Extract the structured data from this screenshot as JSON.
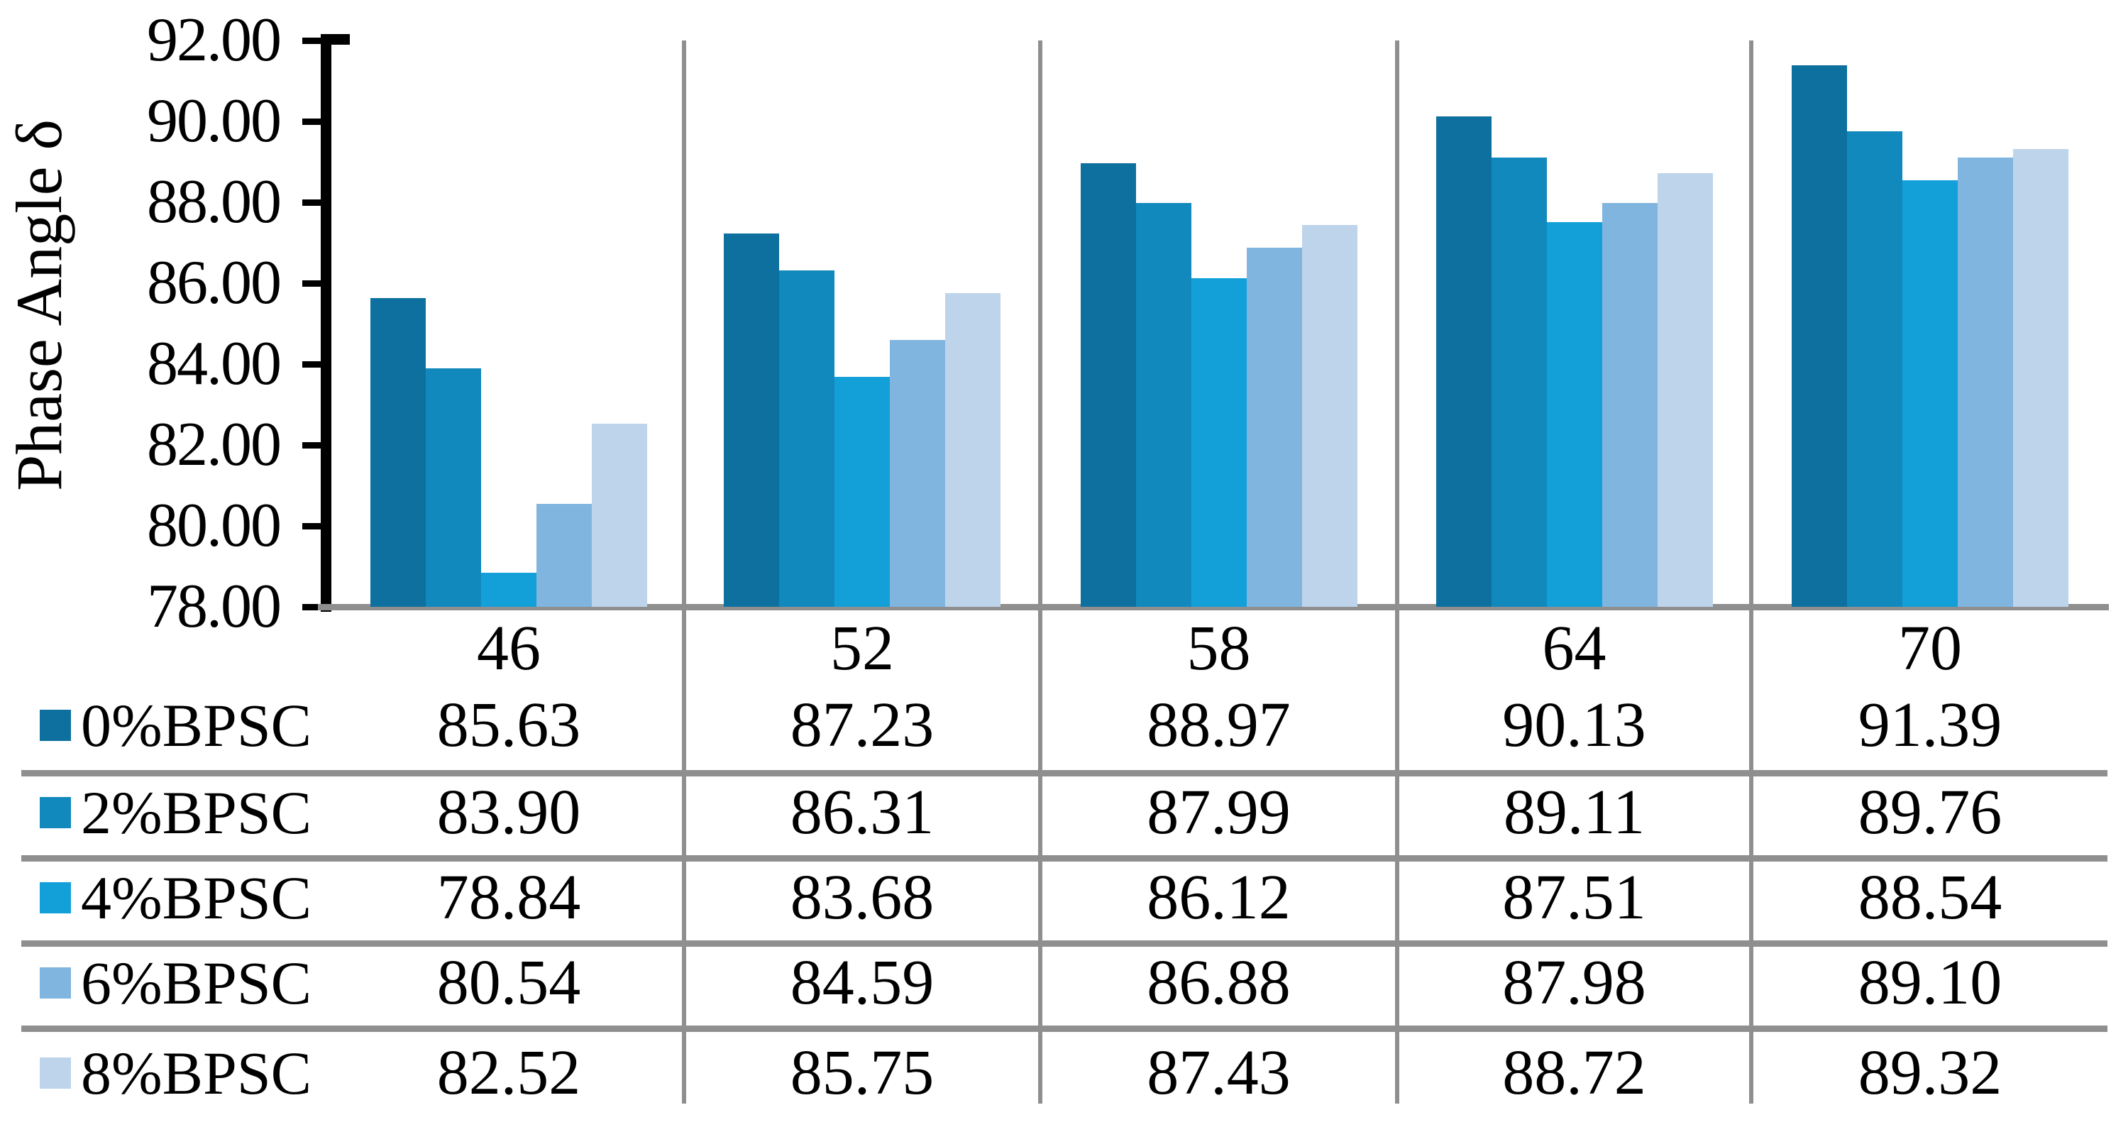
{
  "chart_data": {
    "type": "bar",
    "title": "",
    "ylabel": "Phase Angle δ",
    "xlabel": "",
    "categories": [
      "46",
      "52",
      "58",
      "64",
      "70"
    ],
    "series": [
      {
        "name": "0%BPSC",
        "color": "#0d709e",
        "values": [
          85.63,
          87.23,
          88.97,
          90.13,
          91.39
        ],
        "labels": [
          "85.63",
          "87.23",
          "88.97",
          "90.13",
          "91.39"
        ]
      },
      {
        "name": "2%BPSC",
        "color": "#1189bd",
        "values": [
          83.9,
          86.31,
          87.99,
          89.11,
          89.76
        ],
        "labels": [
          "83.90",
          "86.31",
          "87.99",
          "89.11",
          "89.76"
        ]
      },
      {
        "name": "4%BPSC",
        "color": "#13a0d9",
        "values": [
          78.84,
          83.68,
          86.12,
          87.51,
          88.54
        ],
        "labels": [
          "78.84",
          "83.68",
          "86.12",
          "87.51",
          "88.54"
        ]
      },
      {
        "name": "6%BPSC",
        "color": "#80b5df",
        "values": [
          80.54,
          84.59,
          86.88,
          87.98,
          89.1
        ],
        "labels": [
          "80.54",
          "84.59",
          "86.88",
          "87.98",
          "89.10"
        ]
      },
      {
        "name": "8%BPSC",
        "color": "#bed4eb",
        "values": [
          82.52,
          85.75,
          87.43,
          88.72,
          89.32
        ],
        "labels": [
          "82.52",
          "85.75",
          "87.43",
          "88.72",
          "89.32"
        ]
      }
    ],
    "ylim": [
      78,
      92
    ],
    "ytick_step": 2,
    "yticks": [
      "92.00",
      "90.00",
      "88.00",
      "86.00",
      "84.00",
      "82.00",
      "80.00",
      "78.00"
    ],
    "legend_position": "table-rows-left",
    "grid": {
      "category_separators": true,
      "horizontal_gridlines": false
    }
  },
  "styles": {
    "separator_gray": "#8f8f8f",
    "axis_black": "#000000",
    "background": "#ffffff",
    "text_color": "#000000"
  }
}
